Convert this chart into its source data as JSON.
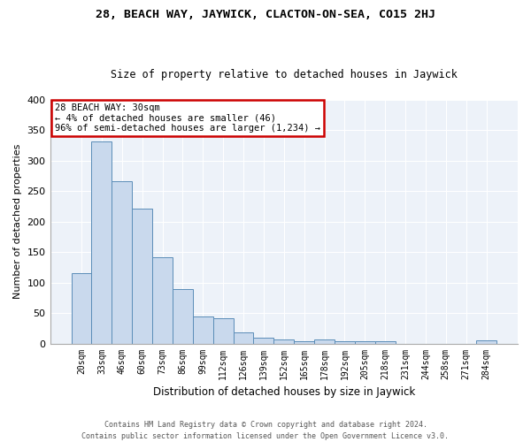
{
  "title": "28, BEACH WAY, JAYWICK, CLACTON-ON-SEA, CO15 2HJ",
  "subtitle": "Size of property relative to detached houses in Jaywick",
  "xlabel": "Distribution of detached houses by size in Jaywick",
  "ylabel": "Number of detached properties",
  "categories": [
    "20sqm",
    "33sqm",
    "46sqm",
    "60sqm",
    "73sqm",
    "86sqm",
    "99sqm",
    "112sqm",
    "126sqm",
    "139sqm",
    "152sqm",
    "165sqm",
    "178sqm",
    "192sqm",
    "205sqm",
    "218sqm",
    "231sqm",
    "244sqm",
    "258sqm",
    "271sqm",
    "284sqm"
  ],
  "values": [
    116,
    332,
    266,
    222,
    141,
    90,
    45,
    42,
    18,
    9,
    7,
    4,
    7,
    4,
    3,
    4,
    0,
    0,
    0,
    0,
    5
  ],
  "bar_color": "#c9d9ed",
  "bar_edge_color": "#5b8db8",
  "background_color": "#edf2f9",
  "annotation_line1": "28 BEACH WAY: 30sqm",
  "annotation_line2": "← 4% of detached houses are smaller (46)",
  "annotation_line3": "96% of semi-detached houses are larger (1,234) →",
  "annotation_box_color": "#ffffff",
  "annotation_box_edge_color": "#cc0000",
  "footer_line1": "Contains HM Land Registry data © Crown copyright and database right 2024.",
  "footer_line2": "Contains public sector information licensed under the Open Government Licence v3.0.",
  "ylim": [
    0,
    400
  ],
  "yticks": [
    0,
    50,
    100,
    150,
    200,
    250,
    300,
    350,
    400
  ],
  "grid_color": "#ffffff",
  "title_fontsize": 9.5,
  "subtitle_fontsize": 8.5
}
